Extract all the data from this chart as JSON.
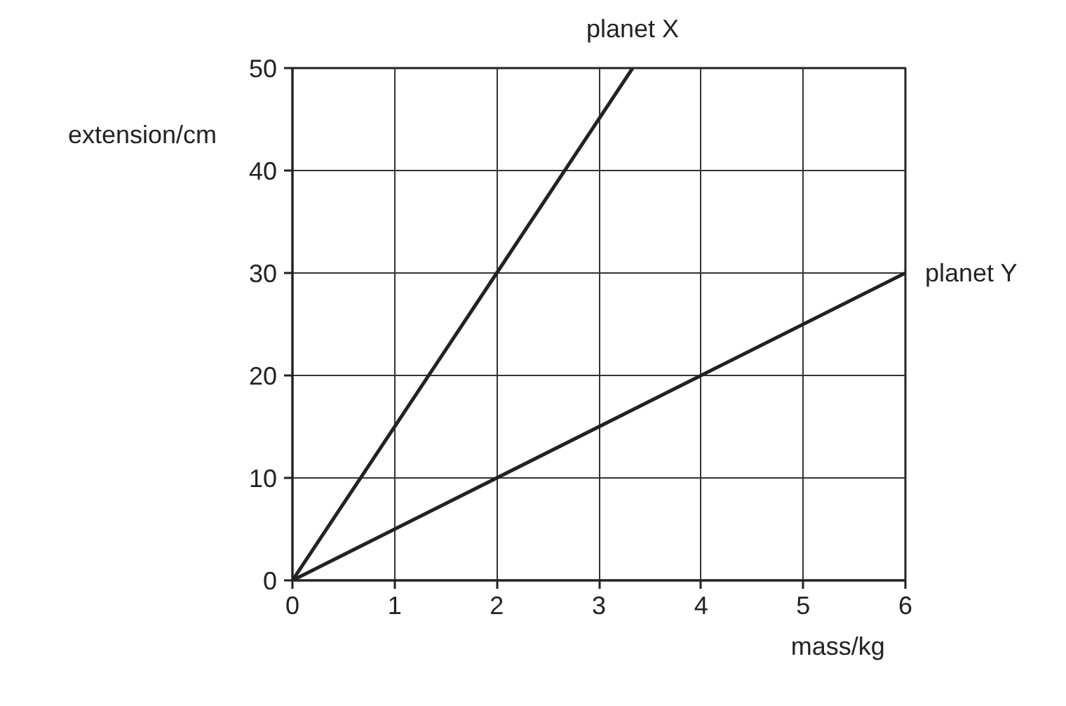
{
  "chart_data": {
    "type": "line",
    "xlabel": "mass/kg",
    "ylabel": "extension/cm",
    "series": [
      {
        "name": "planet X",
        "color": "#222222",
        "x": [
          0,
          2,
          3.33
        ],
        "values": [
          0,
          30,
          50
        ]
      },
      {
        "name": "planet Y",
        "color": "#222222",
        "x": [
          0,
          4,
          6
        ],
        "values": [
          0,
          20,
          30
        ]
      }
    ],
    "xlim": [
      0,
      6
    ],
    "ylim": [
      0,
      50
    ],
    "xticks": [
      0,
      1,
      2,
      3,
      4,
      5,
      6
    ],
    "yticks": [
      0,
      10,
      20,
      30,
      40,
      50
    ],
    "grid": true,
    "legend": false,
    "line_style": "solid",
    "marker": "none"
  }
}
